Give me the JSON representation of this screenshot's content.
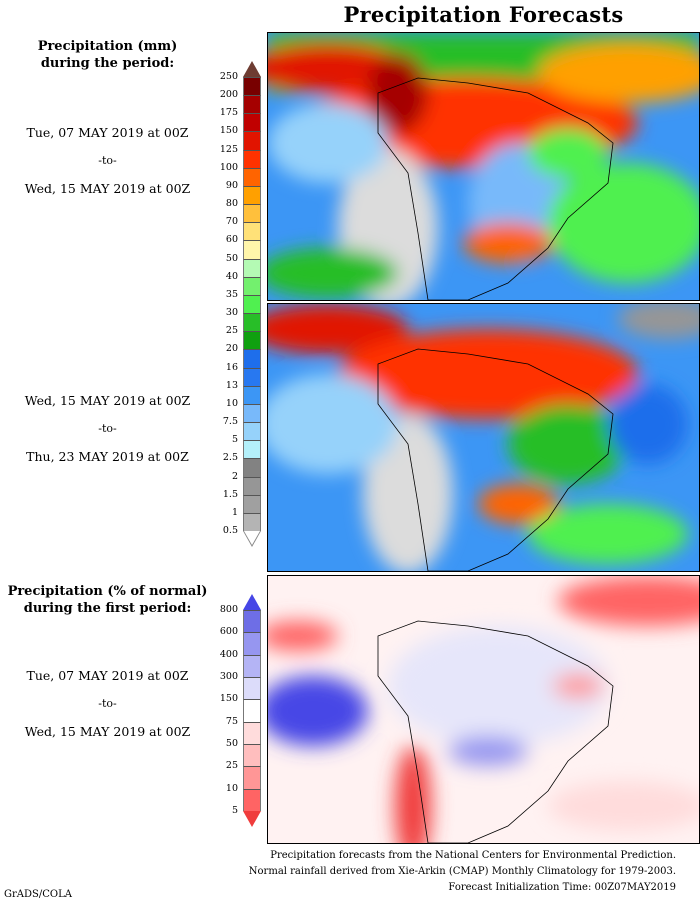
{
  "title": "Precipitation Forecasts",
  "precip_legend": {
    "heading_line1": "Precipitation (mm)",
    "heading_line2": "during the period:",
    "ticks": [
      "0.5",
      "1",
      "1.5",
      "2",
      "2.5",
      "5",
      "7.5",
      "10",
      "13",
      "16",
      "20",
      "25",
      "30",
      "35",
      "40",
      "50",
      "60",
      "70",
      "80",
      "90",
      "100",
      "125",
      "150",
      "175",
      "200",
      "250"
    ],
    "colors": [
      "#b4b4b4",
      "#a0a0a0",
      "#969696",
      "#828282",
      "#b4f0fa",
      "#96d2fa",
      "#78b9fa",
      "#3c96f5",
      "#2878f0",
      "#1e6eeb",
      "#0fa00f",
      "#28be28",
      "#50f050",
      "#73f06e",
      "#b4fab4",
      "#fff5aa",
      "#ffe178",
      "#ffc03c",
      "#ffa000",
      "#ff6400",
      "#ff3200",
      "#e11400",
      "#c00000",
      "#a50000",
      "#780000"
    ],
    "over_color": "#6e3c32",
    "under_color": "#ffffff"
  },
  "period1": {
    "start": "Tue, 07 MAY 2019 at 00Z",
    "sep": "-to-",
    "end": "Wed, 15 MAY 2019 at 00Z"
  },
  "period2": {
    "start": "Wed, 15 MAY 2019 at 00Z",
    "sep": "-to-",
    "end": "Thu, 23 MAY 2019 at 00Z"
  },
  "percent_legend": {
    "heading_line1": "Precipitation (% of normal)",
    "heading_line2": "during the first period:",
    "ticks": [
      "5",
      "10",
      "25",
      "50",
      "75",
      "150",
      "300",
      "400",
      "600",
      "800"
    ],
    "colors": [
      "#ff6464",
      "#ff9696",
      "#ffbebe",
      "#ffdcdc",
      "#ffffff",
      "#dcdcfa",
      "#b4b4f5",
      "#9696f0",
      "#6e6ee6"
    ],
    "over_color": "#4646e6",
    "under_color": "#f03c3c"
  },
  "period3": {
    "start": "Tue, 07 MAY 2019 at 00Z",
    "sep": "-to-",
    "end": "Wed, 15 MAY 2019 at 00Z"
  },
  "footer": {
    "line1": "Precipitation forecasts from the National Centers for Environmental Prediction.",
    "line2": "Normal rainfall derived from Xie-Arkin (CMAP) Monthly Climatology for 1979-2003.",
    "line3": "Forecast Initialization Time: 00Z07MAY2019"
  },
  "credit": "GrADS/COLA"
}
